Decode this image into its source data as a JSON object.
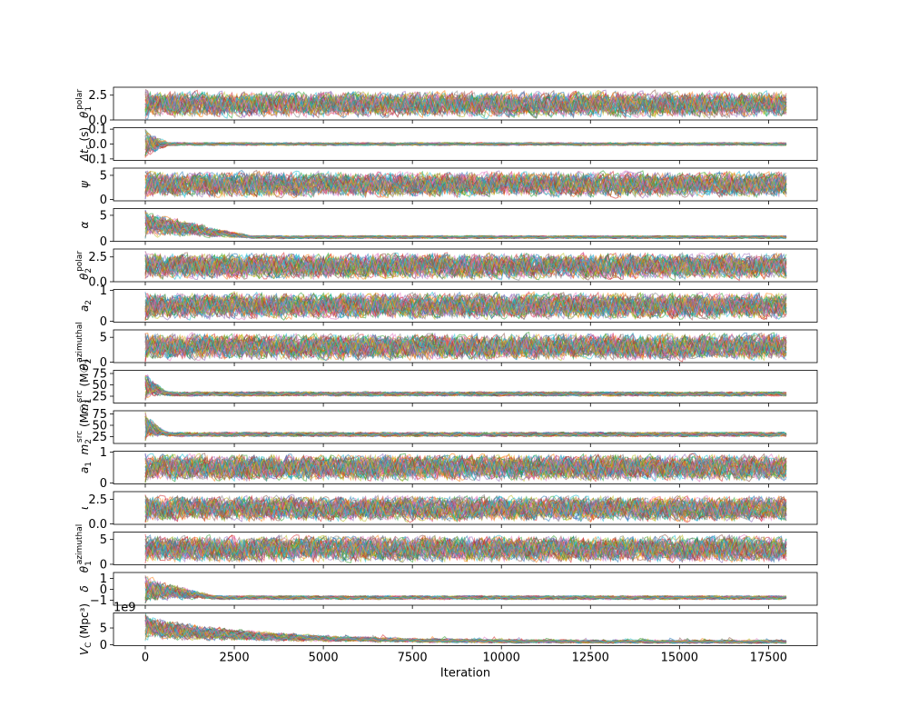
{
  "chart_data": {
    "type": "line",
    "xlabel": "Iteration",
    "x_range": [
      0,
      18000
    ],
    "x_ticks": [
      0,
      2500,
      5000,
      7500,
      10000,
      12500,
      15000,
      17500
    ],
    "x_tick_labels": [
      "0",
      "2500",
      "5000",
      "7500",
      "10000",
      "12500",
      "15000",
      "17500"
    ],
    "n_chains": 40,
    "series_colors": [
      "#1f77b4",
      "#ff7f0e",
      "#2ca02c",
      "#d62728",
      "#9467bd",
      "#8c564b",
      "#e377c2",
      "#7f7f7f",
      "#bcbd22",
      "#17becf"
    ],
    "panels": [
      {
        "ylabel": "θ₁^polar",
        "ylabel_main": "θ",
        "ylabel_sub": "1",
        "ylabel_sup": "polar",
        "ylim": [
          0,
          3.3
        ],
        "yticks": [
          0,
          2.5
        ],
        "ytick_labels": [
          "0.0",
          "2.5"
        ],
        "behavior": "uniform",
        "lo": 0.05,
        "hi": 3.1
      },
      {
        "ylabel": "Δt_c (s)",
        "ylabel_main": "Δt",
        "ylabel_sub": "c",
        "ylabel_sup": "",
        "ylabel_tail": " (s)",
        "ylim": [
          -0.11,
          0.11
        ],
        "yticks": [
          -0.1,
          0.0,
          0.1
        ],
        "ytick_labels": [
          "-0.1",
          "0.0",
          "0.1"
        ],
        "behavior": "converge",
        "start_lo": -0.1,
        "start_hi": 0.1,
        "end_center": 0.0,
        "end_spread": 0.012,
        "converge_at": 700
      },
      {
        "ylabel": "ψ",
        "ylabel_main": "ψ",
        "ylabel_sub": "",
        "ylabel_sup": "",
        "ylim": [
          -0.3,
          6.5
        ],
        "yticks": [
          0,
          5
        ],
        "ytick_labels": [
          "0",
          "5"
        ],
        "behavior": "uniform",
        "lo": 0.0,
        "hi": 6.2
      },
      {
        "ylabel": "α",
        "ylabel_main": "α",
        "ylabel_sub": "",
        "ylabel_sup": "",
        "ylim": [
          0,
          6.3
        ],
        "yticks": [
          0,
          5
        ],
        "ytick_labels": [
          "0",
          "5"
        ],
        "behavior": "converge",
        "start_lo": 0.5,
        "start_hi": 6.2,
        "end_center": 0.8,
        "end_spread": 0.35,
        "converge_at": 3000
      },
      {
        "ylabel": "θ₂^polar",
        "ylabel_main": "θ",
        "ylabel_sub": "2",
        "ylabel_sup": "polar",
        "ylim": [
          0,
          3.3
        ],
        "yticks": [
          0,
          2.5
        ],
        "ytick_labels": [
          "0.0",
          "2.5"
        ],
        "behavior": "uniform",
        "lo": 0.05,
        "hi": 3.1
      },
      {
        "ylabel": "a₂",
        "ylabel_main": "a",
        "ylabel_sub": "2",
        "ylabel_sup": "",
        "ylim": [
          -0.03,
          1.03
        ],
        "yticks": [
          0,
          1
        ],
        "ytick_labels": [
          "0",
          "1"
        ],
        "behavior": "uniform",
        "lo": 0.0,
        "hi": 1.0
      },
      {
        "ylabel": "θ₂^azimuthal",
        "ylabel_main": "θ",
        "ylabel_sub": "2",
        "ylabel_sup": "azimuthal",
        "ylim": [
          -0.1,
          6.5
        ],
        "yticks": [
          0,
          5
        ],
        "ytick_labels": [
          "0",
          "5"
        ],
        "behavior": "uniform",
        "lo": 0.0,
        "hi": 6.2
      },
      {
        "ylabel": "m₁^src (M☉)",
        "ylabel_main": "m",
        "ylabel_sub": "1",
        "ylabel_sup": "src",
        "ylabel_tail": " (M☉)",
        "ylim": [
          10,
          82
        ],
        "yticks": [
          25,
          50,
          75
        ],
        "ytick_labels": [
          "25",
          "50",
          "75"
        ],
        "behavior": "converge",
        "start_lo": 15,
        "start_hi": 80,
        "end_center": 30,
        "end_spread": 6,
        "converge_at": 600
      },
      {
        "ylabel": "m₂^src (M☉)",
        "ylabel_main": "m",
        "ylabel_sub": "2",
        "ylabel_sup": "src",
        "ylabel_tail": " (M☉)",
        "ylim": [
          10,
          82
        ],
        "yticks": [
          25,
          50,
          75
        ],
        "ytick_labels": [
          "25",
          "50",
          "75"
        ],
        "behavior": "converge",
        "start_lo": 15,
        "start_hi": 80,
        "end_center": 30,
        "end_spread": 6,
        "converge_at": 600
      },
      {
        "ylabel": "a₁",
        "ylabel_main": "a",
        "ylabel_sub": "1",
        "ylabel_sup": "",
        "ylim": [
          -0.03,
          1.03
        ],
        "yticks": [
          0,
          1
        ],
        "ytick_labels": [
          "0",
          "1"
        ],
        "behavior": "uniform",
        "lo": 0.0,
        "hi": 1.0
      },
      {
        "ylabel": "ι",
        "ylabel_main": "ι",
        "ylabel_sub": "",
        "ylabel_sup": "",
        "ylim": [
          -0.05,
          3.3
        ],
        "yticks": [
          0,
          2.5
        ],
        "ytick_labels": [
          "0.0",
          "2.5"
        ],
        "behavior": "uniform",
        "lo": 0.05,
        "hi": 3.1
      },
      {
        "ylabel": "θ₁^azimuthal",
        "ylabel_main": "θ",
        "ylabel_sub": "1",
        "ylabel_sup": "azimuthal",
        "ylim": [
          -0.1,
          6.5
        ],
        "yticks": [
          0,
          5
        ],
        "ytick_labels": [
          "0",
          "5"
        ],
        "behavior": "uniform",
        "lo": 0.0,
        "hi": 6.2
      },
      {
        "ylabel": "δ",
        "ylabel_main": "δ",
        "ylabel_sub": "",
        "ylabel_sup": "",
        "ylim": [
          -1.45,
          1.55
        ],
        "yticks": [
          -1,
          0,
          1
        ],
        "ytick_labels": [
          "−1",
          "0",
          "1"
        ],
        "behavior": "converge",
        "start_lo": -1.3,
        "start_hi": 1.4,
        "end_center": -0.75,
        "end_spread": 0.22,
        "converge_at": 2000
      },
      {
        "ylabel": "V_C (Mpc³)",
        "ylabel_main": "V",
        "ylabel_sub": "C",
        "ylabel_sup": "",
        "ylabel_tail": " (Mpc³)",
        "ylim": [
          -0.3,
          9.5
        ],
        "yticks": [
          0,
          5
        ],
        "ytick_labels": [
          "0",
          "5"
        ],
        "scale_label": "1e9",
        "behavior": "decay",
        "start_lo": 1,
        "start_hi": 9.2,
        "end_center": 0.8,
        "end_spread": 0.6,
        "tau": 3500
      }
    ]
  }
}
